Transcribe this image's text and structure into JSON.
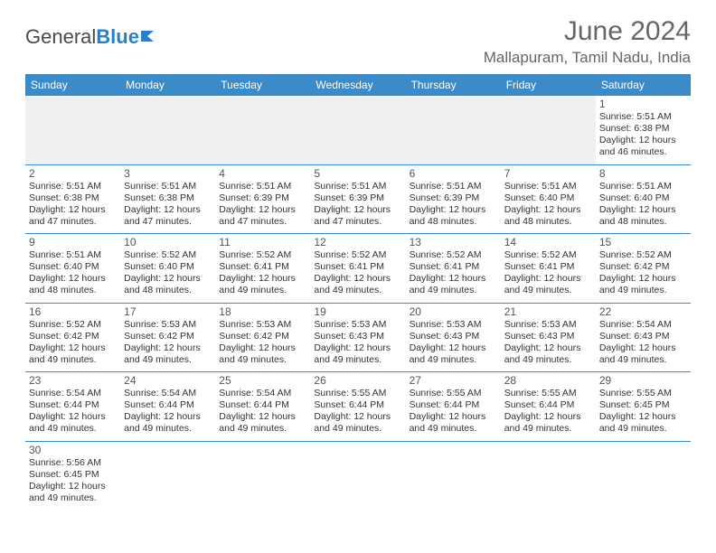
{
  "brand": {
    "part1": "General",
    "part2": "Blue"
  },
  "title": "June 2024",
  "location": "Mallapuram, Tamil Nadu, India",
  "colors": {
    "header_bg": "#3b8bc9",
    "header_text": "#ffffff",
    "border": "#3b8bc9",
    "empty_bg": "#f0f0f0",
    "text": "#333333",
    "title_text": "#666666",
    "brand_blue": "#2a7fc9"
  },
  "typography": {
    "title_fontsize": 30,
    "location_fontsize": 17,
    "header_fontsize": 12,
    "daynum_fontsize": 12,
    "daytext_fontsize": 10.5
  },
  "weekdays": [
    "Sunday",
    "Monday",
    "Tuesday",
    "Wednesday",
    "Thursday",
    "Friday",
    "Saturday"
  ],
  "weeks": [
    [
      null,
      null,
      null,
      null,
      null,
      null,
      {
        "n": "1",
        "sr": "5:51 AM",
        "ss": "6:38 PM",
        "dl": "12 hours and 46 minutes."
      }
    ],
    [
      {
        "n": "2",
        "sr": "5:51 AM",
        "ss": "6:38 PM",
        "dl": "12 hours and 47 minutes."
      },
      {
        "n": "3",
        "sr": "5:51 AM",
        "ss": "6:38 PM",
        "dl": "12 hours and 47 minutes."
      },
      {
        "n": "4",
        "sr": "5:51 AM",
        "ss": "6:39 PM",
        "dl": "12 hours and 47 minutes."
      },
      {
        "n": "5",
        "sr": "5:51 AM",
        "ss": "6:39 PM",
        "dl": "12 hours and 47 minutes."
      },
      {
        "n": "6",
        "sr": "5:51 AM",
        "ss": "6:39 PM",
        "dl": "12 hours and 48 minutes."
      },
      {
        "n": "7",
        "sr": "5:51 AM",
        "ss": "6:40 PM",
        "dl": "12 hours and 48 minutes."
      },
      {
        "n": "8",
        "sr": "5:51 AM",
        "ss": "6:40 PM",
        "dl": "12 hours and 48 minutes."
      }
    ],
    [
      {
        "n": "9",
        "sr": "5:51 AM",
        "ss": "6:40 PM",
        "dl": "12 hours and 48 minutes."
      },
      {
        "n": "10",
        "sr": "5:52 AM",
        "ss": "6:40 PM",
        "dl": "12 hours and 48 minutes."
      },
      {
        "n": "11",
        "sr": "5:52 AM",
        "ss": "6:41 PM",
        "dl": "12 hours and 49 minutes."
      },
      {
        "n": "12",
        "sr": "5:52 AM",
        "ss": "6:41 PM",
        "dl": "12 hours and 49 minutes."
      },
      {
        "n": "13",
        "sr": "5:52 AM",
        "ss": "6:41 PM",
        "dl": "12 hours and 49 minutes."
      },
      {
        "n": "14",
        "sr": "5:52 AM",
        "ss": "6:41 PM",
        "dl": "12 hours and 49 minutes."
      },
      {
        "n": "15",
        "sr": "5:52 AM",
        "ss": "6:42 PM",
        "dl": "12 hours and 49 minutes."
      }
    ],
    [
      {
        "n": "16",
        "sr": "5:52 AM",
        "ss": "6:42 PM",
        "dl": "12 hours and 49 minutes."
      },
      {
        "n": "17",
        "sr": "5:53 AM",
        "ss": "6:42 PM",
        "dl": "12 hours and 49 minutes."
      },
      {
        "n": "18",
        "sr": "5:53 AM",
        "ss": "6:42 PM",
        "dl": "12 hours and 49 minutes."
      },
      {
        "n": "19",
        "sr": "5:53 AM",
        "ss": "6:43 PM",
        "dl": "12 hours and 49 minutes."
      },
      {
        "n": "20",
        "sr": "5:53 AM",
        "ss": "6:43 PM",
        "dl": "12 hours and 49 minutes."
      },
      {
        "n": "21",
        "sr": "5:53 AM",
        "ss": "6:43 PM",
        "dl": "12 hours and 49 minutes."
      },
      {
        "n": "22",
        "sr": "5:54 AM",
        "ss": "6:43 PM",
        "dl": "12 hours and 49 minutes."
      }
    ],
    [
      {
        "n": "23",
        "sr": "5:54 AM",
        "ss": "6:44 PM",
        "dl": "12 hours and 49 minutes."
      },
      {
        "n": "24",
        "sr": "5:54 AM",
        "ss": "6:44 PM",
        "dl": "12 hours and 49 minutes."
      },
      {
        "n": "25",
        "sr": "5:54 AM",
        "ss": "6:44 PM",
        "dl": "12 hours and 49 minutes."
      },
      {
        "n": "26",
        "sr": "5:55 AM",
        "ss": "6:44 PM",
        "dl": "12 hours and 49 minutes."
      },
      {
        "n": "27",
        "sr": "5:55 AM",
        "ss": "6:44 PM",
        "dl": "12 hours and 49 minutes."
      },
      {
        "n": "28",
        "sr": "5:55 AM",
        "ss": "6:44 PM",
        "dl": "12 hours and 49 minutes."
      },
      {
        "n": "29",
        "sr": "5:55 AM",
        "ss": "6:45 PM",
        "dl": "12 hours and 49 minutes."
      }
    ],
    [
      {
        "n": "30",
        "sr": "5:56 AM",
        "ss": "6:45 PM",
        "dl": "12 hours and 49 minutes."
      },
      null,
      null,
      null,
      null,
      null,
      null
    ]
  ],
  "labels": {
    "sunrise": "Sunrise: ",
    "sunset": "Sunset: ",
    "daylight": "Daylight: "
  }
}
